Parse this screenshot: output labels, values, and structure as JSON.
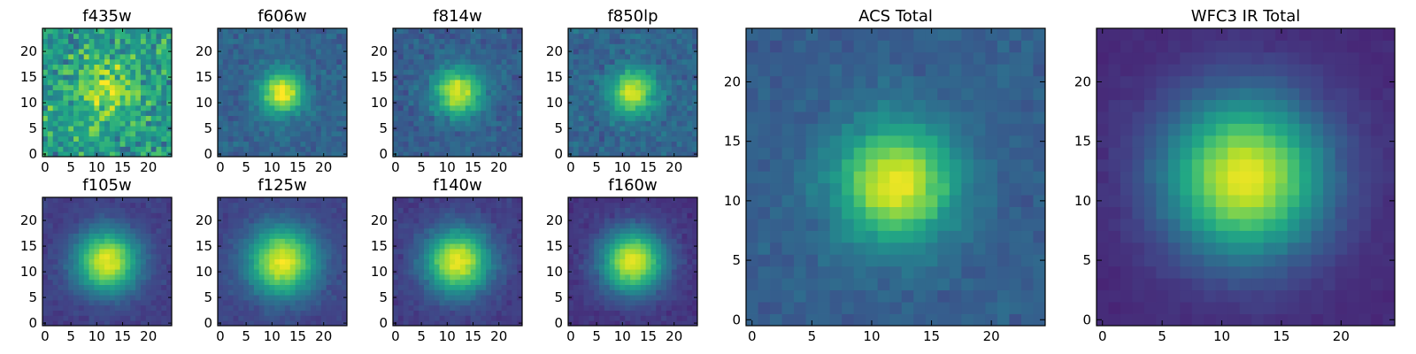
{
  "chart_data": [
    {
      "type": "heatmap",
      "title": "f435w",
      "grid": [
        25,
        25
      ],
      "model": {
        "peak": 0.35,
        "center": [
          12,
          12
        ],
        "sigma": 4,
        "noise": 0.55,
        "floor": 0.55,
        "seed": 11
      },
      "xticks": [
        0,
        5,
        10,
        15,
        20
      ],
      "yticks": [
        0,
        5,
        10,
        15,
        20
      ],
      "xlim": [
        -0.5,
        24.5
      ],
      "ylim": [
        -0.5,
        24.5
      ],
      "colormap": "viridis"
    },
    {
      "type": "heatmap",
      "title": "f606w",
      "grid": [
        25,
        25
      ],
      "model": {
        "peak": 0.7,
        "center": [
          12,
          12
        ],
        "sigma": 2.8,
        "noise": 0.18,
        "floor": 0.32,
        "seed": 12
      },
      "xticks": [
        0,
        5,
        10,
        15,
        20
      ],
      "yticks": [
        0,
        5,
        10,
        15,
        20
      ],
      "xlim": [
        -0.5,
        24.5
      ],
      "ylim": [
        -0.5,
        24.5
      ],
      "colormap": "viridis"
    },
    {
      "type": "heatmap",
      "title": "f814w",
      "grid": [
        25,
        25
      ],
      "model": {
        "peak": 0.65,
        "center": [
          12,
          12
        ],
        "sigma": 3.2,
        "noise": 0.2,
        "floor": 0.3,
        "seed": 13
      },
      "xticks": [
        0,
        5,
        10,
        15,
        20
      ],
      "yticks": [
        0,
        5,
        10,
        15,
        20
      ],
      "xlim": [
        -0.5,
        24.5
      ],
      "ylim": [
        -0.5,
        24.5
      ],
      "colormap": "viridis"
    },
    {
      "type": "heatmap",
      "title": "f850lp",
      "grid": [
        25,
        25
      ],
      "model": {
        "peak": 0.62,
        "center": [
          12,
          12
        ],
        "sigma": 3.0,
        "noise": 0.22,
        "floor": 0.33,
        "seed": 14
      },
      "xticks": [
        0,
        5,
        10,
        15,
        20
      ],
      "yticks": [
        0,
        5,
        10,
        15,
        20
      ],
      "xlim": [
        -0.5,
        24.5
      ],
      "ylim": [
        -0.5,
        24.5
      ],
      "colormap": "viridis"
    },
    {
      "type": "heatmap",
      "title": "f105w",
      "grid": [
        25,
        25
      ],
      "model": {
        "peak": 0.8,
        "center": [
          12,
          12
        ],
        "sigma": 4.2,
        "noise": 0.1,
        "floor": 0.18,
        "seed": 21
      },
      "xticks": [
        0,
        5,
        10,
        15,
        20
      ],
      "yticks": [
        0,
        5,
        10,
        15,
        20
      ],
      "xlim": [
        -0.5,
        24.5
      ],
      "ylim": [
        -0.5,
        24.5
      ],
      "colormap": "viridis"
    },
    {
      "type": "heatmap",
      "title": "f125w",
      "grid": [
        25,
        25
      ],
      "model": {
        "peak": 0.78,
        "center": [
          12,
          12
        ],
        "sigma": 4.6,
        "noise": 0.1,
        "floor": 0.2,
        "seed": 22
      },
      "xticks": [
        0,
        5,
        10,
        15,
        20
      ],
      "yticks": [
        0,
        5,
        10,
        15,
        20
      ],
      "xlim": [
        -0.5,
        24.5
      ],
      "ylim": [
        -0.5,
        24.5
      ],
      "colormap": "viridis"
    },
    {
      "type": "heatmap",
      "title": "f140w",
      "grid": [
        25,
        25
      ],
      "model": {
        "peak": 0.8,
        "center": [
          12,
          12
        ],
        "sigma": 4.3,
        "noise": 0.11,
        "floor": 0.18,
        "seed": 23
      },
      "xticks": [
        0,
        5,
        10,
        15,
        20
      ],
      "yticks": [
        0,
        5,
        10,
        15,
        20
      ],
      "xlim": [
        -0.5,
        24.5
      ],
      "ylim": [
        -0.5,
        24.5
      ],
      "colormap": "viridis"
    },
    {
      "type": "heatmap",
      "title": "f160w",
      "grid": [
        25,
        25
      ],
      "model": {
        "peak": 0.82,
        "center": [
          12,
          12
        ],
        "sigma": 4.2,
        "noise": 0.1,
        "floor": 0.15,
        "seed": 24
      },
      "xticks": [
        0,
        5,
        10,
        15,
        20
      ],
      "yticks": [
        0,
        5,
        10,
        15,
        20
      ],
      "xlim": [
        -0.5,
        24.5
      ],
      "ylim": [
        -0.5,
        24.5
      ],
      "colormap": "viridis"
    },
    {
      "type": "heatmap",
      "title": "ACS Total",
      "grid": [
        25,
        25
      ],
      "model": {
        "peak": 0.68,
        "center": [
          12,
          11.5
        ],
        "sigma": 3.4,
        "noise": 0.12,
        "floor": 0.3,
        "seed": 31
      },
      "xticks": [
        0,
        5,
        10,
        15,
        20
      ],
      "yticks": [
        0,
        5,
        10,
        15,
        20
      ],
      "xlim": [
        -0.5,
        24.5
      ],
      "ylim": [
        -0.5,
        24.5
      ],
      "colormap": "viridis"
    },
    {
      "type": "heatmap",
      "title": "WFC3 IR Total",
      "grid": [
        25,
        25
      ],
      "model": {
        "peak": 0.85,
        "center": [
          12,
          12
        ],
        "sigma": 4.6,
        "noise": 0.05,
        "floor": 0.12,
        "seed": 32
      },
      "xticks": [
        0,
        5,
        10,
        15,
        20
      ],
      "yticks": [
        0,
        5,
        10,
        15,
        20
      ],
      "xlim": [
        -0.5,
        24.5
      ],
      "ylim": [
        -0.5,
        24.5
      ],
      "colormap": "viridis"
    }
  ]
}
